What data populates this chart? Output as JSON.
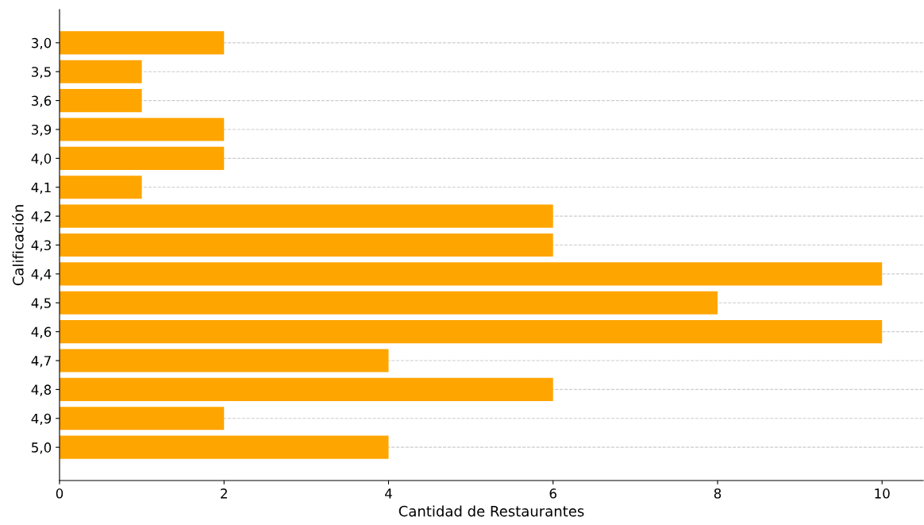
{
  "chart_data": {
    "type": "bar",
    "orientation": "horizontal",
    "xlabel": "Cantidad de Restaurantes",
    "ylabel": "Calificación",
    "categories": [
      "3,0",
      "3,5",
      "3,6",
      "3,9",
      "4,0",
      "4,1",
      "4,2",
      "4,3",
      "4,4",
      "4,5",
      "4,6",
      "4,7",
      "4,8",
      "4,9",
      "5,0"
    ],
    "values": [
      2,
      1,
      1,
      2,
      2,
      1,
      6,
      6,
      10,
      8,
      10,
      4,
      6,
      2,
      4
    ],
    "color": "#ffa500",
    "xlim": [
      0,
      10.5
    ],
    "xticks": [
      0,
      2,
      4,
      6,
      8,
      10
    ],
    "grid": "y"
  }
}
